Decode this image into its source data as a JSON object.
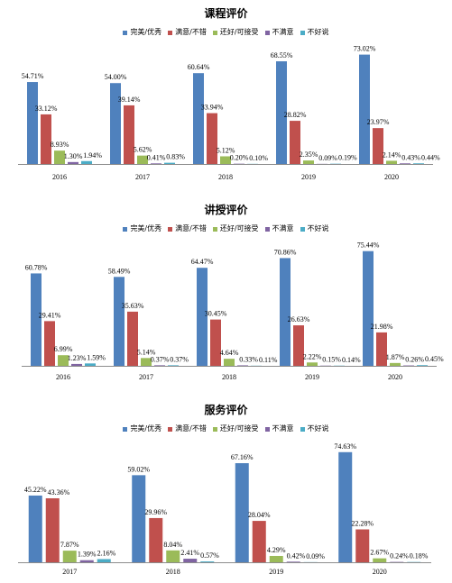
{
  "chart_data": [
    {
      "type": "bar",
      "title": "课程评价",
      "categories": [
        "2016",
        "2017",
        "2018",
        "2019",
        "2020"
      ],
      "series": [
        {
          "name": "完美/优秀",
          "color": "#4F81BD",
          "values": [
            54.71,
            54.0,
            60.64,
            68.55,
            73.02
          ]
        },
        {
          "name": "满意/不错",
          "color": "#C0504D",
          "values": [
            33.12,
            39.14,
            33.94,
            28.82,
            23.97
          ]
        },
        {
          "name": "还好/可接受",
          "color": "#9BBB59",
          "values": [
            8.93,
            5.62,
            5.12,
            2.35,
            2.14
          ]
        },
        {
          "name": "不满意",
          "color": "#8064A2",
          "values": [
            1.3,
            0.41,
            0.2,
            0.09,
            0.43
          ]
        },
        {
          "name": "不好说",
          "color": "#4BACC6",
          "values": [
            1.94,
            0.83,
            0.1,
            0.19,
            0.44
          ]
        }
      ],
      "unit": "%",
      "ylim": [
        0,
        80
      ],
      "grid": false,
      "legend": "top"
    },
    {
      "type": "bar",
      "title": "讲授评价",
      "categories": [
        "2016",
        "2017",
        "2018",
        "2019",
        "2020"
      ],
      "series": [
        {
          "name": "完美/优秀",
          "color": "#4F81BD",
          "values": [
            60.78,
            58.49,
            64.47,
            70.86,
            75.44
          ]
        },
        {
          "name": "满意/不错",
          "color": "#C0504D",
          "values": [
            29.41,
            35.63,
            30.45,
            26.63,
            21.98
          ]
        },
        {
          "name": "还好/可接受",
          "color": "#9BBB59",
          "values": [
            6.99,
            5.14,
            4.64,
            2.22,
            1.87
          ]
        },
        {
          "name": "不满意",
          "color": "#8064A2",
          "values": [
            1.23,
            0.37,
            0.33,
            0.15,
            0.26
          ]
        },
        {
          "name": "不好说",
          "color": "#4BACC6",
          "values": [
            1.59,
            0.37,
            0.11,
            0.14,
            0.45
          ]
        }
      ],
      "unit": "%",
      "ylim": [
        0,
        80
      ],
      "grid": false,
      "legend": "top"
    },
    {
      "type": "bar",
      "title": "服务评价",
      "categories": [
        "2017",
        "2018",
        "2019",
        "2020"
      ],
      "series": [
        {
          "name": "完美/优秀",
          "color": "#4F81BD",
          "values": [
            45.22,
            59.02,
            67.16,
            74.63
          ]
        },
        {
          "name": "满意/不错",
          "color": "#C0504D",
          "values": [
            43.36,
            29.96,
            28.04,
            22.28
          ]
        },
        {
          "name": "还好/可接受",
          "color": "#9BBB59",
          "values": [
            7.87,
            8.04,
            4.29,
            2.67
          ]
        },
        {
          "name": "不满意",
          "color": "#8064A2",
          "values": [
            1.39,
            2.41,
            0.42,
            0.24
          ]
        },
        {
          "name": "不好说",
          "color": "#4BACC6",
          "values": [
            2.16,
            0.57,
            0.09,
            0.18
          ]
        }
      ],
      "unit": "%",
      "ylim": [
        0,
        80
      ],
      "grid": false,
      "legend": "top"
    }
  ]
}
